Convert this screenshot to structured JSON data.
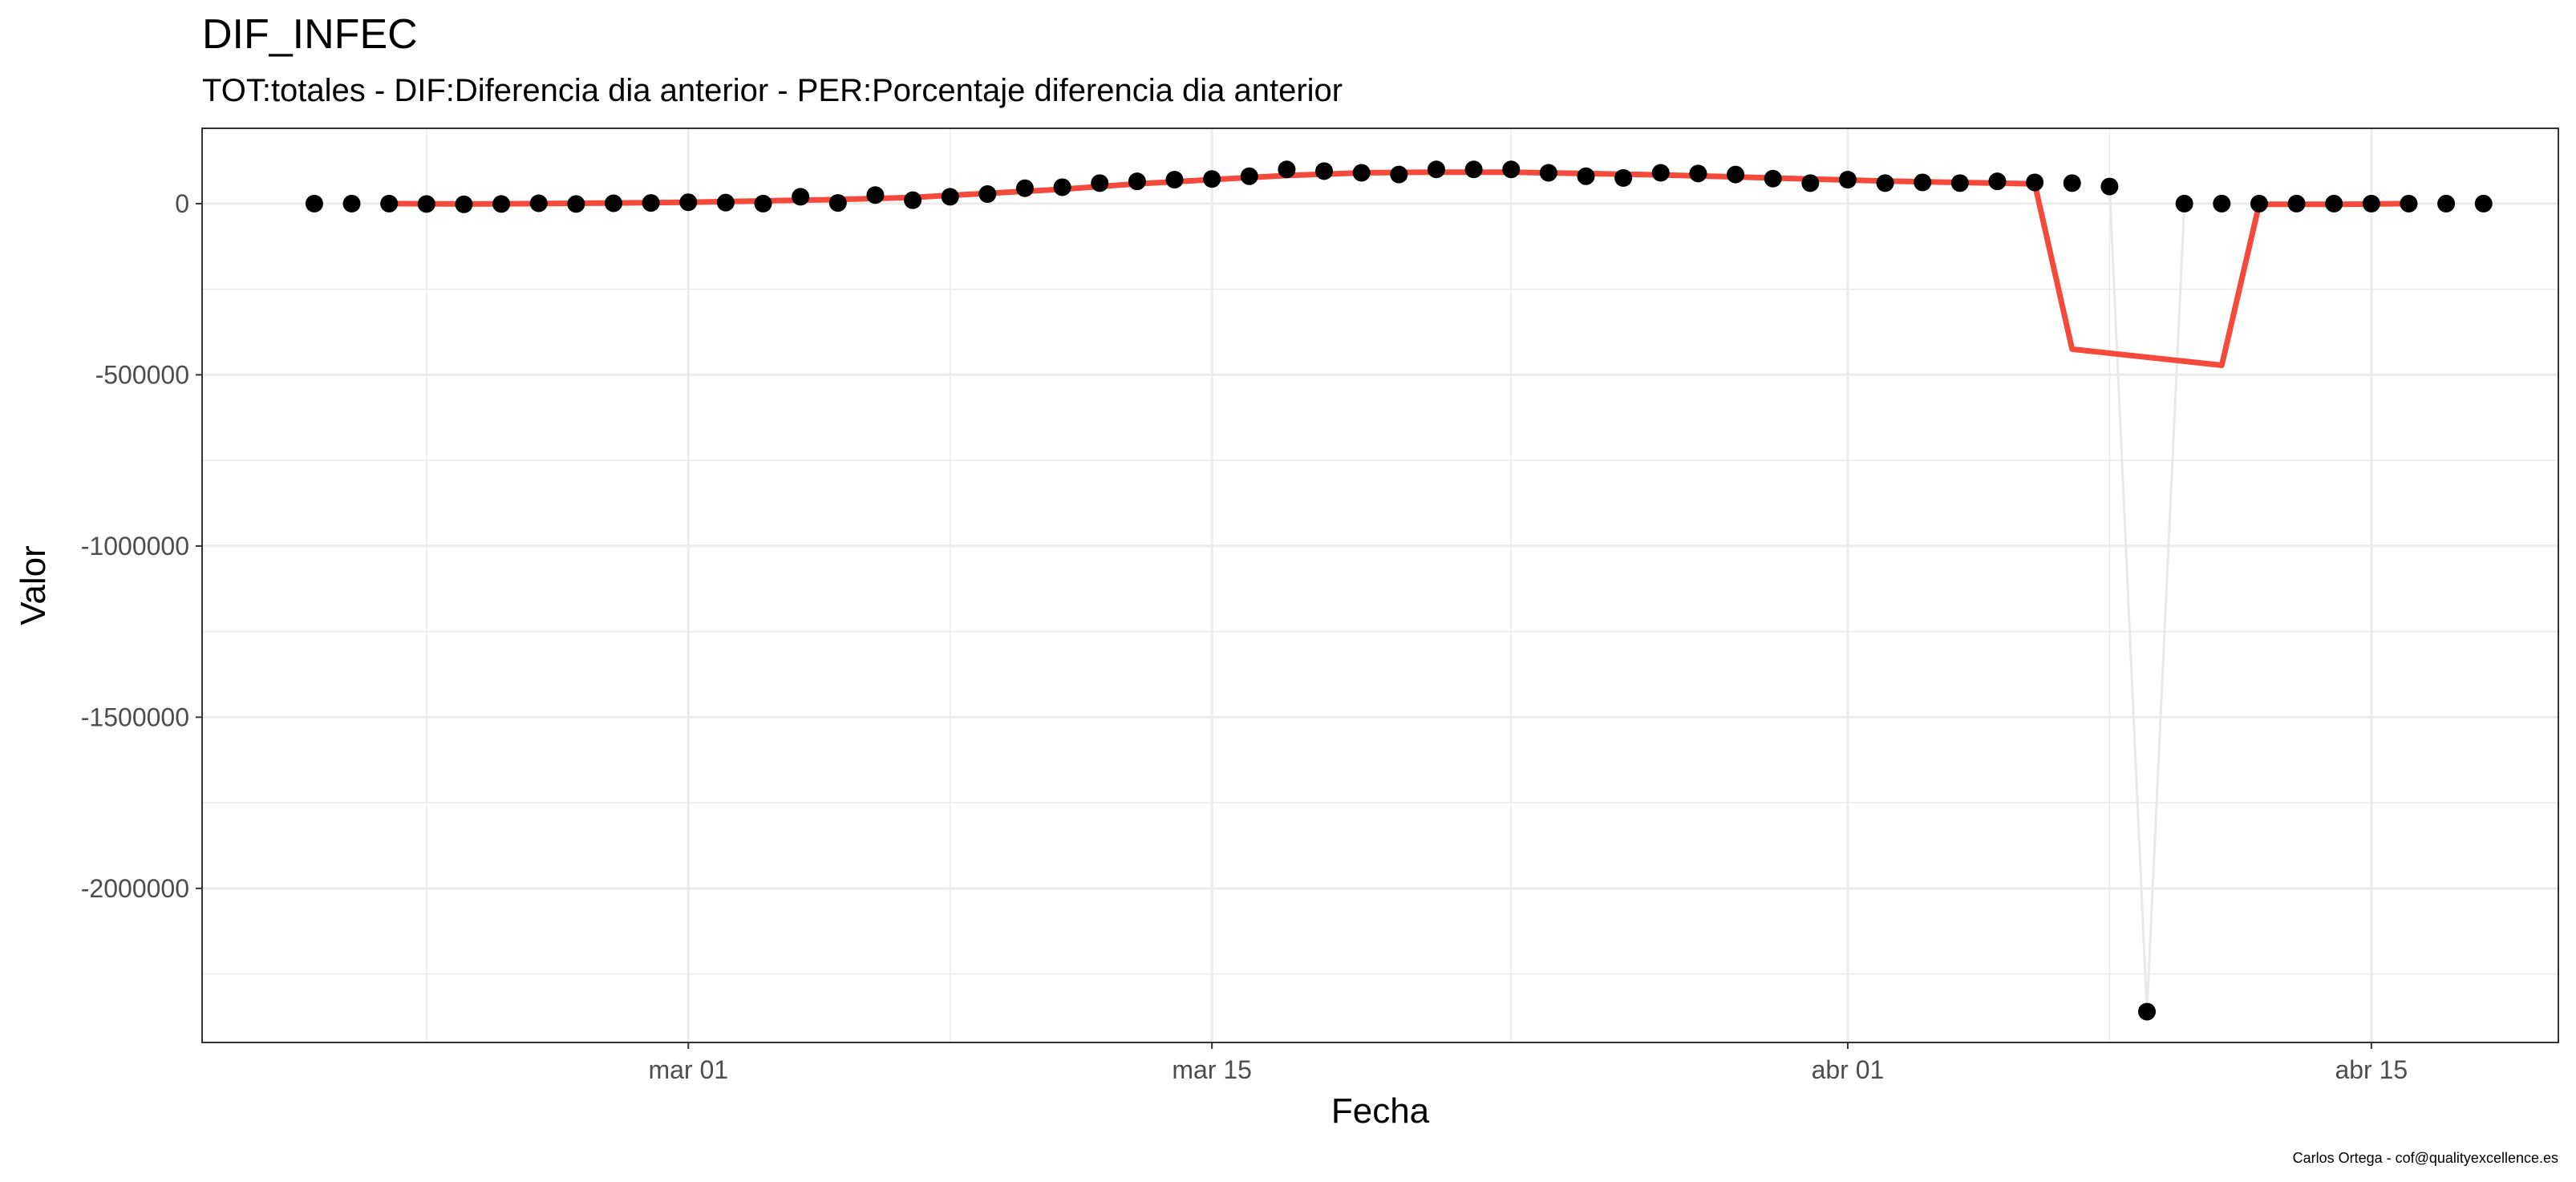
{
  "chart_data": {
    "type": "line",
    "title": "DIF_INFEC",
    "subtitle": "TOT:totales - DIF:Diferencia dia anterior - PER:Porcentaje diferencia dia anterior",
    "xlabel": "Fecha",
    "ylabel": "Valor",
    "caption": "Carlos Ortega - cof@qualityexcellence.es",
    "x_range": [
      "2020-02-17",
      "2020-04-20"
    ],
    "y_range": [
      -2450000,
      220000
    ],
    "x_ticks": [
      {
        "date": "2020-03-01",
        "label": "mar 01"
      },
      {
        "date": "2020-03-15",
        "label": "mar 15"
      },
      {
        "date": "2020-04-01",
        "label": "abr 01"
      },
      {
        "date": "2020-04-15",
        "label": "abr 15"
      }
    ],
    "x_minor_ticks": [
      "2020-02-23",
      "2020-03-08",
      "2020-03-23",
      "2020-04-08"
    ],
    "y_ticks": [
      {
        "value": 0,
        "label": "0"
      },
      {
        "value": -500000,
        "label": "-500000"
      },
      {
        "value": -1000000,
        "label": "-1000000"
      },
      {
        "value": -1500000,
        "label": "-1500000"
      },
      {
        "value": -2000000,
        "label": "-2000000"
      }
    ],
    "y_minor_ticks": [
      -250000,
      -750000,
      -1250000,
      -1750000,
      -2250000
    ],
    "grid": true,
    "colors": {
      "points": "#000000",
      "smooth_line": "#f4493b",
      "connector_line": "#e8e8e8",
      "grid": "#ebebeb",
      "panel_border": "#333333"
    },
    "series": [
      {
        "kind": "points",
        "x": [
          "2020-02-20",
          "2020-02-21",
          "2020-02-22",
          "2020-02-23",
          "2020-02-24",
          "2020-02-25",
          "2020-02-26",
          "2020-02-27",
          "2020-02-28",
          "2020-02-29",
          "2020-03-01",
          "2020-03-02",
          "2020-03-03",
          "2020-03-04",
          "2020-03-05",
          "2020-03-06",
          "2020-03-07",
          "2020-03-08",
          "2020-03-09",
          "2020-03-10",
          "2020-03-11",
          "2020-03-12",
          "2020-03-13",
          "2020-03-14",
          "2020-03-15",
          "2020-03-16",
          "2020-03-17",
          "2020-03-18",
          "2020-03-19",
          "2020-03-20",
          "2020-03-21",
          "2020-03-22",
          "2020-03-23",
          "2020-03-24",
          "2020-03-25",
          "2020-03-26",
          "2020-03-27",
          "2020-03-28",
          "2020-03-29",
          "2020-03-30",
          "2020-03-31",
          "2020-04-01",
          "2020-04-02",
          "2020-04-03",
          "2020-04-04",
          "2020-04-05",
          "2020-04-06",
          "2020-04-07",
          "2020-04-08",
          "2020-04-09",
          "2020-04-10",
          "2020-04-11",
          "2020-04-12",
          "2020-04-13",
          "2020-04-14",
          "2020-04-15",
          "2020-04-16",
          "2020-04-17",
          "2020-04-18"
        ],
        "y": [
          0,
          0,
          0,
          -1000,
          -2000,
          -1000,
          1000,
          -1000,
          1000,
          2000,
          4000,
          3000,
          0,
          20000,
          2000,
          25000,
          10000,
          20000,
          28000,
          45000,
          48000,
          60000,
          65000,
          70000,
          72000,
          80000,
          100000,
          95000,
          90000,
          85000,
          100000,
          100000,
          100000,
          90000,
          80000,
          75000,
          90000,
          88000,
          85000,
          73000,
          60000,
          70000,
          60000,
          62000,
          60000,
          65000,
          62000,
          60000,
          50000,
          -2360000,
          0,
          0,
          0,
          0,
          0,
          0,
          0,
          0,
          0
        ]
      },
      {
        "kind": "connector",
        "x": [
          "2020-04-08",
          "2020-04-09",
          "2020-04-10"
        ],
        "y": [
          50000,
          -2360000,
          0
        ]
      },
      {
        "kind": "smooth",
        "x": [
          "2020-02-22",
          "2020-02-24",
          "2020-02-26",
          "2020-02-28",
          "2020-03-01",
          "2020-03-03",
          "2020-03-05",
          "2020-03-07",
          "2020-03-09",
          "2020-03-11",
          "2020-03-13",
          "2020-03-15",
          "2020-03-17",
          "2020-03-19",
          "2020-03-21",
          "2020-03-23",
          "2020-03-25",
          "2020-03-27",
          "2020-03-29",
          "2020-03-31",
          "2020-04-02",
          "2020-04-04",
          "2020-04-06",
          "2020-04-07",
          "2020-04-11",
          "2020-04-12",
          "2020-04-14",
          "2020-04-16"
        ],
        "y": [
          0,
          -1000,
          0,
          2000,
          4000,
          8000,
          12000,
          18000,
          30000,
          42000,
          58000,
          70000,
          82000,
          90000,
          92000,
          92000,
          88000,
          84000,
          78000,
          72000,
          66000,
          62000,
          58000,
          -425000,
          -472000,
          -2000,
          -2000,
          0
        ]
      }
    ]
  }
}
